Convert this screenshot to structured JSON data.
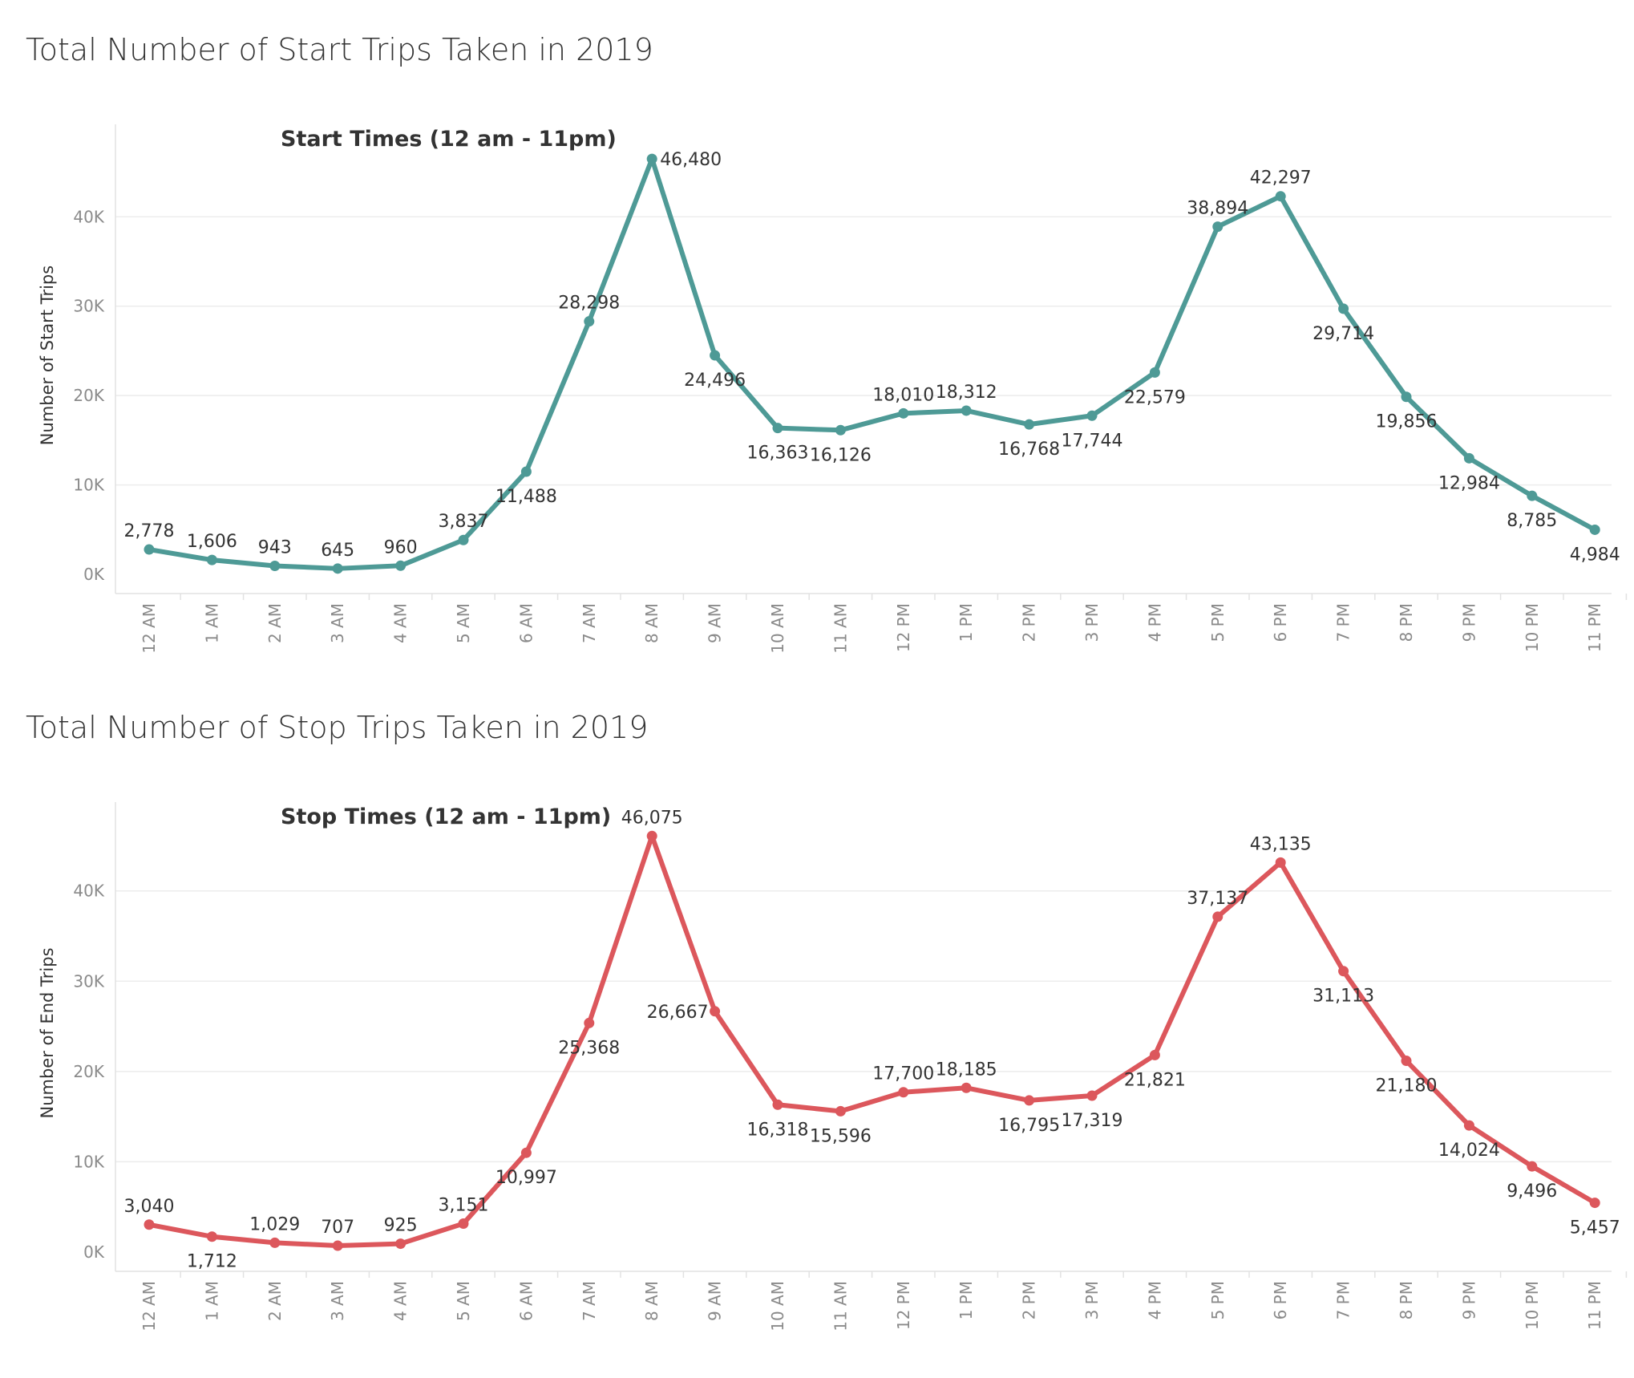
{
  "page": {
    "start_title": "Total Number of Start Trips Taken in 2019",
    "stop_title": "Total Number of Stop Trips Taken in 2019"
  },
  "chart_data": [
    {
      "type": "line",
      "title": "Start Times (12 am - 11pm)",
      "xlabel": "",
      "ylabel": "Number of Start Trips",
      "categories": [
        "12 AM",
        "1 AM",
        "2 AM",
        "3 AM",
        "4 AM",
        "5 AM",
        "6 AM",
        "7 AM",
        "8 AM",
        "9 AM",
        "10 AM",
        "11 AM",
        "12 PM",
        "1 PM",
        "2 PM",
        "3 PM",
        "4 PM",
        "5 PM",
        "6 PM",
        "7 PM",
        "8 PM",
        "9 PM",
        "10 PM",
        "11 PM"
      ],
      "values": [
        2778,
        1606,
        943,
        645,
        960,
        3837,
        11488,
        28298,
        46480,
        24496,
        16363,
        16126,
        18010,
        18312,
        16768,
        17744,
        22579,
        38894,
        42297,
        29714,
        19856,
        12984,
        8785,
        4984
      ],
      "data_labels": [
        "2,778",
        "1,606",
        "943",
        "645",
        "960",
        "3,837",
        "11,488",
        "28,298",
        "46,480",
        "24,496",
        "16,363",
        "16,126",
        "18,010",
        "18,312",
        "16,768",
        "17,744",
        "22,579",
        "38,894",
        "42,297",
        "29,714",
        "19,856",
        "12,984",
        "8,785",
        "4,984"
      ],
      "yticks": [
        0,
        10000,
        20000,
        30000,
        40000
      ],
      "ytick_labels": [
        "0K",
        "10K",
        "20K",
        "30K",
        "40K"
      ],
      "ylim": [
        0,
        49000
      ],
      "color": "#4e9a96",
      "grid": true,
      "legend": "none"
    },
    {
      "type": "line",
      "title": "Stop Times (12 am - 11pm)",
      "xlabel": "",
      "ylabel": "Number of End Trips",
      "categories": [
        "12 AM",
        "1 AM",
        "2 AM",
        "3 AM",
        "4 AM",
        "5 AM",
        "6 AM",
        "7 AM",
        "8 AM",
        "9 AM",
        "10 AM",
        "11 AM",
        "12 PM",
        "1 PM",
        "2 PM",
        "3 PM",
        "4 PM",
        "5 PM",
        "6 PM",
        "7 PM",
        "8 PM",
        "9 PM",
        "10 PM",
        "11 PM"
      ],
      "values": [
        3040,
        1712,
        1029,
        707,
        925,
        3151,
        10997,
        25368,
        46075,
        26667,
        16318,
        15596,
        17700,
        18185,
        16795,
        17319,
        21821,
        37137,
        43135,
        31113,
        21180,
        14024,
        9496,
        5457
      ],
      "data_labels": [
        "3,040",
        "1,712",
        "1,029",
        "707",
        "925",
        "3,151",
        "10,997",
        "25,368",
        "46,075",
        "26,667",
        "16,318",
        "15,596",
        "17,700",
        "18,185",
        "16,795",
        "17,319",
        "21,821",
        "37,137",
        "43,135",
        "31,113",
        "21,180",
        "14,024",
        "9,496",
        "5,457"
      ],
      "yticks": [
        0,
        10000,
        20000,
        30000,
        40000
      ],
      "ytick_labels": [
        "0K",
        "10K",
        "20K",
        "30K",
        "40K"
      ],
      "ylim": [
        0,
        48500
      ],
      "color": "#dc575c",
      "grid": true,
      "legend": "none"
    }
  ]
}
